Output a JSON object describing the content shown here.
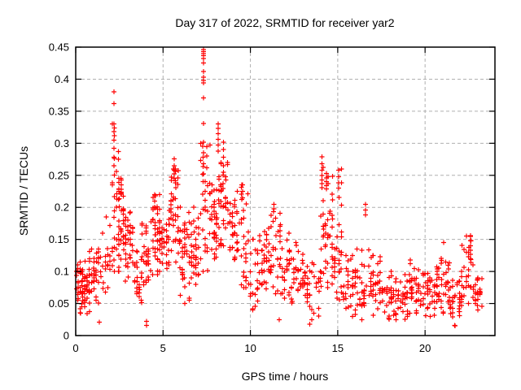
{
  "window": {
    "background": "#ffffff"
  },
  "chart_data": {
    "type": "scatter",
    "title": "Day 317 of 2022, SRMTID for receiver yar2",
    "xlabel": "GPS time / hours",
    "ylabel": "SRMTID / TECUs",
    "xlim": [
      0,
      24
    ],
    "ylim": [
      0,
      0.45
    ],
    "xticks": [
      0,
      5,
      10,
      15,
      20
    ],
    "xtick_labels": [
      "0",
      "5",
      "10",
      "15",
      "20"
    ],
    "yticks": [
      0,
      0.05,
      0.1,
      0.15,
      0.2,
      0.25,
      0.3,
      0.35,
      0.4,
      0.45
    ],
    "ytick_labels": [
      "0",
      "0.05",
      "0.1",
      "0.15",
      "0.2",
      "0.25",
      "0.3",
      "0.35",
      "0.4",
      "0.45"
    ],
    "grid": {
      "show": true,
      "color": "#b0b0b0",
      "dash": "4 3"
    },
    "border_color": "#000000",
    "marker": {
      "shape": "plus",
      "color": "#ff0000",
      "size": 7
    },
    "legend": {
      "show": false
    },
    "seed": 317,
    "bands_format": [
      "hour_start",
      "hour_end",
      "n_points",
      "value_min",
      "value_max"
    ],
    "bands": [
      [
        0.0,
        0.35,
        30,
        0.035,
        0.115
      ],
      [
        0.35,
        0.8,
        40,
        0.03,
        0.12
      ],
      [
        0.8,
        1.3,
        30,
        0.04,
        0.135
      ],
      [
        1.3,
        1.75,
        14,
        0.05,
        0.16
      ],
      [
        1.75,
        2.1,
        12,
        0.075,
        0.185
      ],
      [
        2.1,
        2.45,
        26,
        0.1,
        0.33
      ],
      [
        2.45,
        2.8,
        38,
        0.1,
        0.245
      ],
      [
        2.8,
        3.3,
        34,
        0.085,
        0.2
      ],
      [
        3.3,
        3.8,
        24,
        0.045,
        0.155
      ],
      [
        3.8,
        4.3,
        30,
        0.075,
        0.175
      ],
      [
        4.3,
        4.8,
        36,
        0.095,
        0.22
      ],
      [
        4.8,
        5.35,
        36,
        0.1,
        0.19
      ],
      [
        5.35,
        5.95,
        40,
        0.115,
        0.26
      ],
      [
        5.95,
        6.5,
        36,
        0.05,
        0.2
      ],
      [
        6.5,
        7.1,
        40,
        0.055,
        0.2
      ],
      [
        7.1,
        7.7,
        30,
        0.1,
        0.3
      ],
      [
        7.7,
        8.2,
        36,
        0.12,
        0.235
      ],
      [
        8.2,
        8.7,
        36,
        0.14,
        0.27
      ],
      [
        8.7,
        9.3,
        34,
        0.1,
        0.225
      ],
      [
        9.3,
        9.9,
        28,
        0.075,
        0.235
      ],
      [
        9.9,
        10.5,
        24,
        0.04,
        0.15
      ],
      [
        10.5,
        11.1,
        30,
        0.07,
        0.185
      ],
      [
        11.1,
        11.75,
        34,
        0.065,
        0.205
      ],
      [
        11.75,
        12.4,
        30,
        0.05,
        0.16
      ],
      [
        12.4,
        13.1,
        28,
        0.045,
        0.145
      ],
      [
        13.1,
        14.0,
        34,
        0.025,
        0.12
      ],
      [
        14.0,
        14.75,
        44,
        0.075,
        0.27
      ],
      [
        14.75,
        15.3,
        30,
        0.04,
        0.26
      ],
      [
        15.3,
        16.0,
        30,
        0.03,
        0.125
      ],
      [
        16.0,
        16.8,
        34,
        0.025,
        0.135
      ],
      [
        16.8,
        17.6,
        36,
        0.03,
        0.125
      ],
      [
        17.6,
        18.4,
        38,
        0.025,
        0.1
      ],
      [
        18.4,
        19.2,
        36,
        0.025,
        0.095
      ],
      [
        19.2,
        20.0,
        36,
        0.03,
        0.105
      ],
      [
        20.0,
        20.7,
        36,
        0.03,
        0.12
      ],
      [
        20.7,
        21.4,
        36,
        0.035,
        0.145
      ],
      [
        21.4,
        22.1,
        36,
        0.015,
        0.1
      ],
      [
        22.1,
        22.75,
        30,
        0.05,
        0.155
      ],
      [
        22.75,
        23.25,
        24,
        0.04,
        0.1
      ]
    ],
    "spikes_format": [
      "hour",
      "values[]"
    ],
    "spikes": [
      [
        1.35,
        [
          0.021
        ]
      ],
      [
        2.19,
        [
          0.38,
          0.362,
          0.33,
          0.318,
          0.305,
          0.292,
          0.278,
          0.265
        ]
      ],
      [
        2.62,
        [
          0.243,
          0.235,
          0.228,
          0.222
        ]
      ],
      [
        4.05,
        [
          0.022,
          0.016
        ]
      ],
      [
        4.52,
        [
          0.22,
          0.21,
          0.2
        ]
      ],
      [
        5.64,
        [
          0.276,
          0.265,
          0.258,
          0.252,
          0.245
        ]
      ],
      [
        7.32,
        [
          0.446,
          0.443,
          0.44,
          0.437,
          0.432,
          0.425,
          0.412,
          0.403,
          0.398,
          0.394,
          0.371,
          0.331,
          0.302,
          0.285,
          0.268,
          0.252
        ]
      ],
      [
        7.5,
        [
          0.295,
          0.28,
          0.262
        ]
      ],
      [
        8.16,
        [
          0.33,
          0.323,
          0.315,
          0.306,
          0.297,
          0.288
        ]
      ],
      [
        8.45,
        [
          0.302,
          0.29,
          0.278,
          0.265,
          0.255
        ]
      ],
      [
        9.55,
        [
          0.235,
          0.225,
          0.215
        ]
      ],
      [
        11.35,
        [
          0.205,
          0.198
        ]
      ],
      [
        11.65,
        [
          0.025
        ]
      ],
      [
        13.4,
        [
          0.018
        ]
      ],
      [
        14.1,
        [
          0.279,
          0.268,
          0.258,
          0.25,
          0.243,
          0.237,
          0.231
        ]
      ],
      [
        14.35,
        [
          0.253,
          0.246,
          0.24,
          0.234,
          0.229
        ]
      ],
      [
        15.05,
        [
          0.258,
          0.248,
          0.238,
          0.23
        ]
      ],
      [
        16.6,
        [
          0.205,
          0.196,
          0.188
        ]
      ],
      [
        19.15,
        [
          0.118,
          0.112
        ]
      ],
      [
        21.7,
        [
          0.016
        ]
      ],
      [
        22.6,
        [
          0.156,
          0.148,
          0.14,
          0.133,
          0.127,
          0.12
        ]
      ]
    ]
  }
}
